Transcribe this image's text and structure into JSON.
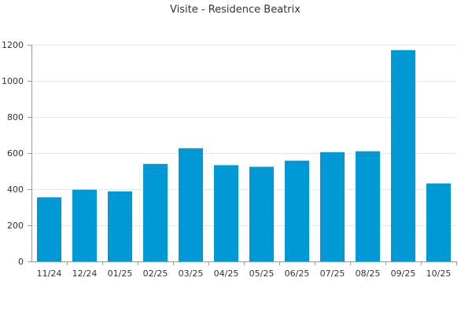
{
  "chart_data": {
    "type": "bar",
    "title": "Visite - Residence Beatrix",
    "xlabel": "",
    "ylabel": "",
    "categories": [
      "11/24",
      "12/24",
      "01/25",
      "02/25",
      "03/25",
      "04/25",
      "05/25",
      "06/25",
      "07/25",
      "08/25",
      "09/25",
      "10/25"
    ],
    "values": [
      355,
      397,
      388,
      540,
      627,
      533,
      524,
      558,
      605,
      610,
      1170,
      432
    ],
    "ylim": [
      0,
      1200
    ],
    "yticks": [
      0,
      200,
      400,
      600,
      800,
      1000,
      1200
    ],
    "grid": true,
    "legend": "none",
    "colors": {
      "bar": "#0099d6"
    }
  }
}
